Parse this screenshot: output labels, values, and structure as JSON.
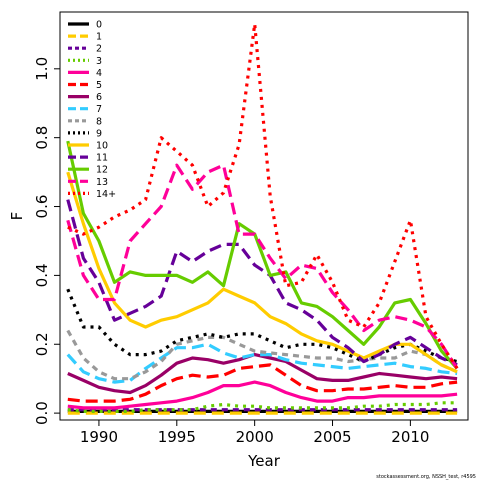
{
  "chart_data": {
    "type": "line",
    "xlabel": "Year",
    "ylabel": "F",
    "xlim": [
      1987.5,
      2013.7
    ],
    "ylim": [
      -0.02,
      1.165
    ],
    "x_ticks": [
      1990,
      1995,
      2000,
      2005,
      2010
    ],
    "y_ticks": [
      0.0,
      0.2,
      0.4,
      0.6,
      0.8,
      1.0
    ],
    "y_tick_labels": [
      "0.0",
      "0.2",
      "0.4",
      "0.6",
      "0.8",
      "1.0"
    ],
    "grid": false,
    "legend_position": "top-left",
    "x": [
      1988,
      1989,
      1990,
      1991,
      1992,
      1993,
      1994,
      1995,
      1996,
      1997,
      1998,
      1999,
      2000,
      2001,
      2002,
      2003,
      2004,
      2005,
      2006,
      2007,
      2008,
      2009,
      2010,
      2011,
      2012,
      2013
    ],
    "series": [
      {
        "name": "0",
        "color": "#000000",
        "dash": "",
        "values": [
          0.005,
          0.005,
          0.005,
          0.005,
          0.005,
          0.005,
          0.005,
          0.005,
          0.005,
          0.005,
          0.005,
          0.005,
          0.005,
          0.005,
          0.005,
          0.005,
          0.005,
          0.005,
          0.005,
          0.005,
          0.005,
          0.005,
          0.005,
          0.005,
          0.005,
          0.005
        ]
      },
      {
        "name": "1",
        "color": "#ffcc00",
        "dash": "12,6",
        "values": [
          0.0,
          0.0,
          0.0,
          0.0,
          0.0,
          0.0,
          0.0,
          0.0,
          0.0,
          0.0,
          0.0,
          0.0,
          0.0,
          0.0,
          0.0,
          0.0,
          0.0,
          0.0,
          0.0,
          0.0,
          0.0,
          0.0,
          0.0,
          0.0,
          0.0,
          0.0
        ]
      },
      {
        "name": "2",
        "color": "#660099",
        "dash": "6,5",
        "values": [
          0.01,
          0.01,
          0.01,
          0.01,
          0.01,
          0.01,
          0.01,
          0.01,
          0.01,
          0.01,
          0.01,
          0.01,
          0.01,
          0.01,
          0.01,
          0.01,
          0.01,
          0.01,
          0.01,
          0.01,
          0.01,
          0.01,
          0.01,
          0.01,
          0.01,
          0.01
        ]
      },
      {
        "name": "3",
        "color": "#66cc00",
        "dash": "3,5",
        "values": [
          0.01,
          0.005,
          0.005,
          0.005,
          0.005,
          0.01,
          0.01,
          0.01,
          0.01,
          0.02,
          0.025,
          0.02,
          0.02,
          0.015,
          0.015,
          0.015,
          0.015,
          0.015,
          0.015,
          0.02,
          0.02,
          0.025,
          0.025,
          0.025,
          0.03,
          0.03
        ]
      },
      {
        "name": "4",
        "color": "#ff0099",
        "dash": "",
        "values": [
          0.02,
          0.015,
          0.015,
          0.015,
          0.02,
          0.025,
          0.03,
          0.035,
          0.045,
          0.06,
          0.08,
          0.08,
          0.09,
          0.08,
          0.06,
          0.045,
          0.035,
          0.035,
          0.045,
          0.045,
          0.05,
          0.05,
          0.05,
          0.05,
          0.05,
          0.055
        ]
      },
      {
        "name": "5",
        "color": "#ff0000",
        "dash": "12,6",
        "values": [
          0.04,
          0.035,
          0.035,
          0.035,
          0.04,
          0.055,
          0.08,
          0.1,
          0.11,
          0.105,
          0.11,
          0.13,
          0.135,
          0.14,
          0.11,
          0.08,
          0.065,
          0.065,
          0.07,
          0.07,
          0.075,
          0.08,
          0.075,
          0.075,
          0.085,
          0.09
        ]
      },
      {
        "name": "6",
        "color": "#990066",
        "dash": "",
        "values": [
          0.115,
          0.095,
          0.075,
          0.065,
          0.06,
          0.08,
          0.11,
          0.145,
          0.16,
          0.155,
          0.145,
          0.155,
          0.17,
          0.16,
          0.15,
          0.125,
          0.1,
          0.095,
          0.095,
          0.105,
          0.115,
          0.11,
          0.105,
          0.1,
          0.105,
          0.1
        ]
      },
      {
        "name": "7",
        "color": "#33ccff",
        "dash": "12,6",
        "values": [
          0.17,
          0.12,
          0.1,
          0.09,
          0.095,
          0.13,
          0.16,
          0.19,
          0.19,
          0.2,
          0.175,
          0.16,
          0.17,
          0.17,
          0.155,
          0.145,
          0.14,
          0.135,
          0.13,
          0.135,
          0.14,
          0.145,
          0.135,
          0.13,
          0.12,
          0.115
        ]
      },
      {
        "name": "8",
        "color": "#999999",
        "dash": "6,5",
        "values": [
          0.24,
          0.16,
          0.12,
          0.1,
          0.1,
          0.12,
          0.15,
          0.2,
          0.21,
          0.22,
          0.22,
          0.2,
          0.18,
          0.175,
          0.17,
          0.165,
          0.16,
          0.16,
          0.15,
          0.155,
          0.16,
          0.16,
          0.18,
          0.17,
          0.14,
          0.12
        ]
      },
      {
        "name": "9",
        "color": "#000000",
        "dash": "3,5",
        "values": [
          0.36,
          0.25,
          0.25,
          0.2,
          0.17,
          0.17,
          0.18,
          0.21,
          0.22,
          0.23,
          0.22,
          0.23,
          0.23,
          0.21,
          0.19,
          0.2,
          0.2,
          0.19,
          0.17,
          0.15,
          0.17,
          0.19,
          0.2,
          0.18,
          0.16,
          0.15
        ]
      },
      {
        "name": "10",
        "color": "#ffcc00",
        "dash": "",
        "values": [
          0.7,
          0.55,
          0.42,
          0.32,
          0.27,
          0.25,
          0.27,
          0.28,
          0.3,
          0.32,
          0.36,
          0.34,
          0.32,
          0.28,
          0.26,
          0.23,
          0.21,
          0.2,
          0.18,
          0.16,
          0.18,
          0.2,
          0.2,
          0.17,
          0.14,
          0.12
        ]
      },
      {
        "name": "11",
        "color": "#660099",
        "dash": "12,6",
        "values": [
          0.62,
          0.45,
          0.38,
          0.27,
          0.29,
          0.31,
          0.34,
          0.47,
          0.44,
          0.47,
          0.49,
          0.49,
          0.43,
          0.4,
          0.32,
          0.3,
          0.27,
          0.22,
          0.19,
          0.15,
          0.17,
          0.2,
          0.22,
          0.19,
          0.16,
          0.14
        ]
      },
      {
        "name": "12",
        "color": "#66cc00",
        "dash": "",
        "values": [
          0.79,
          0.58,
          0.5,
          0.38,
          0.41,
          0.4,
          0.4,
          0.4,
          0.38,
          0.41,
          0.37,
          0.55,
          0.52,
          0.4,
          0.41,
          0.32,
          0.31,
          0.28,
          0.24,
          0.2,
          0.25,
          0.32,
          0.33,
          0.26,
          0.18,
          0.13
        ]
      },
      {
        "name": "13",
        "color": "#ff0099",
        "dash": "12,6",
        "values": [
          0.56,
          0.4,
          0.33,
          0.33,
          0.5,
          0.55,
          0.6,
          0.72,
          0.65,
          0.7,
          0.72,
          0.52,
          0.52,
          0.45,
          0.39,
          0.43,
          0.42,
          0.35,
          0.3,
          0.24,
          0.27,
          0.28,
          0.27,
          0.25,
          0.2,
          0.13
        ]
      },
      {
        "name": "14+",
        "color": "#ff0000",
        "dash": "3,5",
        "values": [
          0.54,
          0.52,
          0.54,
          0.57,
          0.59,
          0.62,
          0.8,
          0.76,
          0.72,
          0.6,
          0.64,
          0.78,
          1.13,
          0.63,
          0.37,
          0.38,
          0.46,
          0.38,
          0.27,
          0.25,
          0.32,
          0.44,
          0.56,
          0.28,
          0.2,
          0.13
        ]
      }
    ]
  },
  "credit": "stockassessment.org, NSSH_test, r4595"
}
